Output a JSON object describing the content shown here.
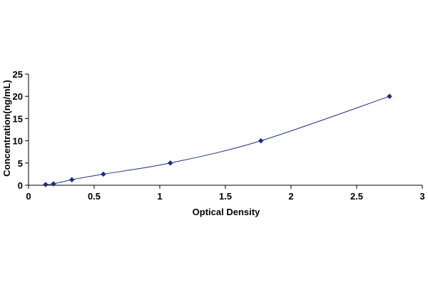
{
  "chart_data": {
    "type": "scatter",
    "title": "",
    "xlabel": "Optical Density",
    "ylabel": "Concentration(ng/mL)",
    "xlim": [
      0,
      3
    ],
    "ylim": [
      0,
      25
    ],
    "x_ticks": [
      0,
      0.5,
      1,
      1.5,
      2,
      2.5,
      3
    ],
    "x_tick_labels": [
      "0",
      "0.5",
      "1",
      "1.5",
      "2",
      "2.5",
      "3"
    ],
    "y_ticks": [
      0,
      5,
      10,
      15,
      20,
      25
    ],
    "y_tick_labels": [
      "0",
      "5",
      "10",
      "15",
      "20",
      "25"
    ],
    "grid": false,
    "legend": "none",
    "series": [
      {
        "x": [
          0.13,
          0.19,
          0.33,
          0.57,
          1.08,
          1.77,
          2.75
        ],
        "y": [
          0.16,
          0.31,
          1.25,
          2.5,
          5,
          10,
          20
        ],
        "marker": "diamond",
        "line": "smooth",
        "color": "#1f2f7f"
      }
    ]
  }
}
